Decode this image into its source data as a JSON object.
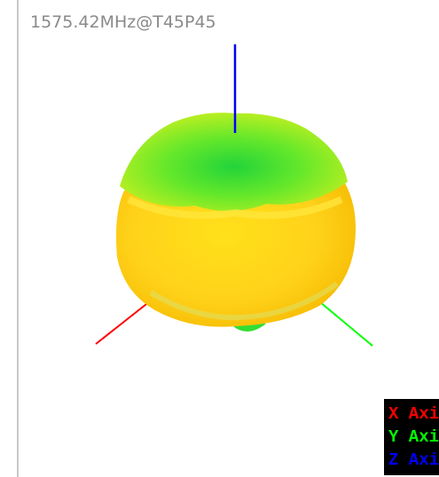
{
  "title": "1575.42MHz@T45P45",
  "legend": {
    "items": [
      {
        "label": "X Axis",
        "color": "#ff0000"
      },
      {
        "label": "Y Axis",
        "color": "#00ff00"
      },
      {
        "label": "Z Axis",
        "color": "#0000ff"
      }
    ]
  }
}
